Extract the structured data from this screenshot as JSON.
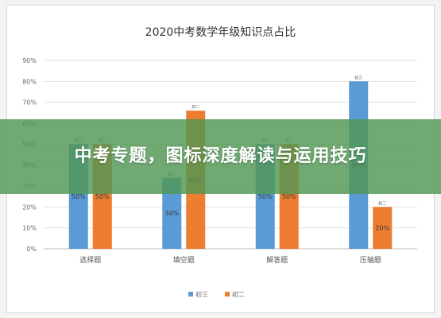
{
  "banner": {
    "text": "中考专题，图标深度解读与运用技巧"
  },
  "chart_data": {
    "type": "bar",
    "title": "2020中考数学年级知识点占比",
    "categories": [
      "选择题",
      "填空题",
      "解答题",
      "压轴题"
    ],
    "series": [
      {
        "name": "初三",
        "color": "#5b9bd5",
        "values": [
          50,
          34,
          50,
          80
        ],
        "labels": [
          "50%",
          "34%",
          "50%",
          "80%"
        ]
      },
      {
        "name": "初二",
        "color": "#ed7d31",
        "values": [
          50,
          66,
          50,
          20
        ],
        "labels": [
          "50%",
          "66%",
          "50%",
          "20%"
        ]
      }
    ],
    "yticks": [
      "0%",
      "10%",
      "20%",
      "30%",
      "40%",
      "50%",
      "60%",
      "70%",
      "80%",
      "90%"
    ],
    "ylim": [
      0,
      90
    ],
    "grid": true,
    "legend": "bottom",
    "xlabel": "",
    "ylabel": ""
  }
}
